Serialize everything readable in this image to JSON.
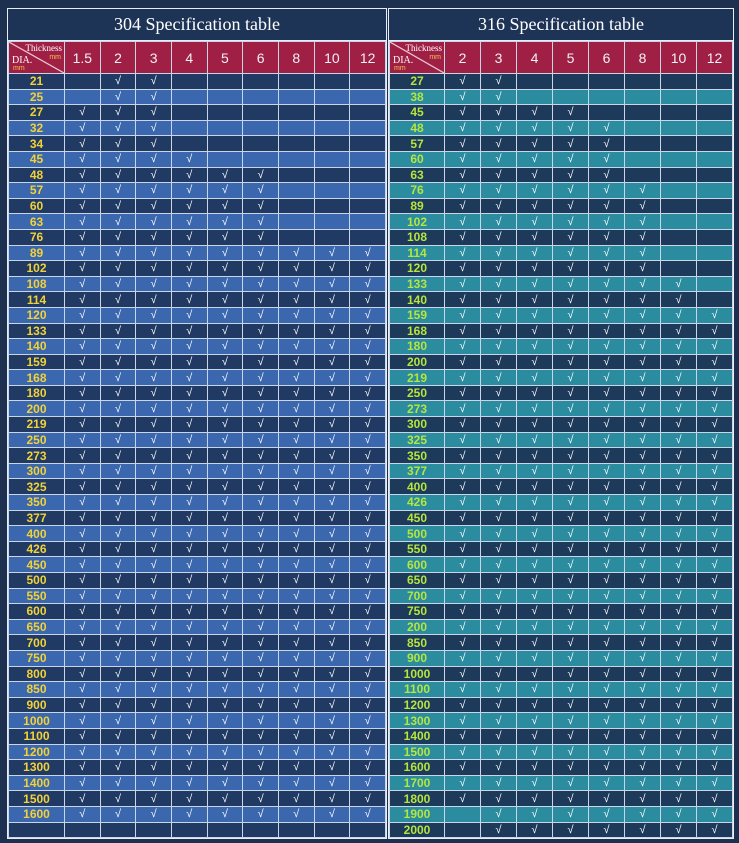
{
  "tables": [
    {
      "id": "304",
      "title": "304 Specification table",
      "corner": {
        "thickness": "Thickness",
        "dia": "DIA.",
        "unit_thickness": "mm",
        "unit_dia": "mm"
      },
      "thickness": [
        "1.5",
        "2",
        "3",
        "4",
        "5",
        "6",
        "8",
        "10",
        "12"
      ],
      "check": "√",
      "rows": [
        {
          "dia": "21",
          "from": 1,
          "to": 2
        },
        {
          "dia": "25",
          "from": 1,
          "to": 2
        },
        {
          "dia": "27",
          "from": 0,
          "to": 2
        },
        {
          "dia": "32",
          "from": 0,
          "to": 2
        },
        {
          "dia": "34",
          "from": 0,
          "to": 2
        },
        {
          "dia": "45",
          "from": 0,
          "to": 3
        },
        {
          "dia": "48",
          "from": 0,
          "to": 5
        },
        {
          "dia": "57",
          "from": 0,
          "to": 5
        },
        {
          "dia": "60",
          "from": 0,
          "to": 5
        },
        {
          "dia": "63",
          "from": 0,
          "to": 5
        },
        {
          "dia": "76",
          "from": 0,
          "to": 5
        },
        {
          "dia": "89",
          "from": 0,
          "to": 8
        },
        {
          "dia": "102",
          "from": 0,
          "to": 8
        },
        {
          "dia": "108",
          "from": 0,
          "to": 8
        },
        {
          "dia": "114",
          "from": 0,
          "to": 8
        },
        {
          "dia": "120",
          "from": 0,
          "to": 8
        },
        {
          "dia": "133",
          "from": 0,
          "to": 8
        },
        {
          "dia": "140",
          "from": 0,
          "to": 8
        },
        {
          "dia": "159",
          "from": 0,
          "to": 8
        },
        {
          "dia": "168",
          "from": 0,
          "to": 8
        },
        {
          "dia": "180",
          "from": 0,
          "to": 8
        },
        {
          "dia": "200",
          "from": 0,
          "to": 8
        },
        {
          "dia": "219",
          "from": 0,
          "to": 8
        },
        {
          "dia": "250",
          "from": 0,
          "to": 8
        },
        {
          "dia": "273",
          "from": 0,
          "to": 8
        },
        {
          "dia": "300",
          "from": 0,
          "to": 8
        },
        {
          "dia": "325",
          "from": 0,
          "to": 8
        },
        {
          "dia": "350",
          "from": 0,
          "to": 8
        },
        {
          "dia": "377",
          "from": 0,
          "to": 8
        },
        {
          "dia": "400",
          "from": 0,
          "to": 8
        },
        {
          "dia": "426",
          "from": 0,
          "to": 8
        },
        {
          "dia": "450",
          "from": 0,
          "to": 8
        },
        {
          "dia": "500",
          "from": 0,
          "to": 8
        },
        {
          "dia": "550",
          "from": 0,
          "to": 8
        },
        {
          "dia": "600",
          "from": 0,
          "to": 8
        },
        {
          "dia": "650",
          "from": 0,
          "to": 8
        },
        {
          "dia": "700",
          "from": 0,
          "to": 8
        },
        {
          "dia": "750",
          "from": 0,
          "to": 8
        },
        {
          "dia": "800",
          "from": 0,
          "to": 8
        },
        {
          "dia": "850",
          "from": 0,
          "to": 8
        },
        {
          "dia": "900",
          "from": 0,
          "to": 8
        },
        {
          "dia": "1000",
          "from": 0,
          "to": 8
        },
        {
          "dia": "1100",
          "from": 0,
          "to": 8
        },
        {
          "dia": "1200",
          "from": 0,
          "to": 8
        },
        {
          "dia": "1300",
          "from": 0,
          "to": 8
        },
        {
          "dia": "1400",
          "from": 0,
          "to": 8
        },
        {
          "dia": "1500",
          "from": 0,
          "to": 8
        },
        {
          "dia": "1600",
          "from": 0,
          "to": 8
        },
        {
          "dia": "",
          "from": -1,
          "to": -1
        }
      ]
    },
    {
      "id": "316",
      "title": "316 Specification table",
      "corner": {
        "thickness": "Thickness",
        "dia": "DIA.",
        "unit_thickness": "mm",
        "unit_dia": "mm"
      },
      "thickness": [
        "2",
        "3",
        "4",
        "5",
        "6",
        "8",
        "10",
        "12"
      ],
      "check": "√",
      "rows": [
        {
          "dia": "27",
          "from": 0,
          "to": 1
        },
        {
          "dia": "38",
          "from": 0,
          "to": 1
        },
        {
          "dia": "45",
          "from": 0,
          "to": 3
        },
        {
          "dia": "48",
          "from": 0,
          "to": 4
        },
        {
          "dia": "57",
          "from": 0,
          "to": 4
        },
        {
          "dia": "60",
          "from": 0,
          "to": 4
        },
        {
          "dia": "63",
          "from": 0,
          "to": 4
        },
        {
          "dia": "76",
          "from": 0,
          "to": 5
        },
        {
          "dia": "89",
          "from": 0,
          "to": 5
        },
        {
          "dia": "102",
          "from": 0,
          "to": 5
        },
        {
          "dia": "108",
          "from": 0,
          "to": 5
        },
        {
          "dia": "114",
          "from": 0,
          "to": 5
        },
        {
          "dia": "120",
          "from": 0,
          "to": 5
        },
        {
          "dia": "133",
          "from": 0,
          "to": 6
        },
        {
          "dia": "140",
          "from": 0,
          "to": 6
        },
        {
          "dia": "159",
          "from": 0,
          "to": 7
        },
        {
          "dia": "168",
          "from": 0,
          "to": 7
        },
        {
          "dia": "180",
          "from": 0,
          "to": 7
        },
        {
          "dia": "200",
          "from": 0,
          "to": 7
        },
        {
          "dia": "219",
          "from": 0,
          "to": 7
        },
        {
          "dia": "250",
          "from": 0,
          "to": 7
        },
        {
          "dia": "273",
          "from": 0,
          "to": 7
        },
        {
          "dia": "300",
          "from": 0,
          "to": 7
        },
        {
          "dia": "325",
          "from": 0,
          "to": 7
        },
        {
          "dia": "350",
          "from": 0,
          "to": 7
        },
        {
          "dia": "377",
          "from": 0,
          "to": 7
        },
        {
          "dia": "400",
          "from": 0,
          "to": 7
        },
        {
          "dia": "426",
          "from": 0,
          "to": 7
        },
        {
          "dia": "450",
          "from": 0,
          "to": 7
        },
        {
          "dia": "500",
          "from": 0,
          "to": 7
        },
        {
          "dia": "550",
          "from": 0,
          "to": 7
        },
        {
          "dia": "600",
          "from": 0,
          "to": 7
        },
        {
          "dia": "650",
          "from": 0,
          "to": 7
        },
        {
          "dia": "700",
          "from": 0,
          "to": 7
        },
        {
          "dia": "750",
          "from": 0,
          "to": 7
        },
        {
          "dia": "200",
          "from": 0,
          "to": 7
        },
        {
          "dia": "850",
          "from": 0,
          "to": 7
        },
        {
          "dia": "900",
          "from": 0,
          "to": 7
        },
        {
          "dia": "1000",
          "from": 0,
          "to": 7
        },
        {
          "dia": "1100",
          "from": 0,
          "to": 7
        },
        {
          "dia": "1200",
          "from": 0,
          "to": 7
        },
        {
          "dia": "1300",
          "from": 0,
          "to": 7
        },
        {
          "dia": "1400",
          "from": 0,
          "to": 7
        },
        {
          "dia": "1500",
          "from": 0,
          "to": 7
        },
        {
          "dia": "1600",
          "from": 0,
          "to": 7
        },
        {
          "dia": "1700",
          "from": 0,
          "to": 7
        },
        {
          "dia": "1800",
          "from": 0,
          "to": 7
        },
        {
          "dia": "1900",
          "from": 1,
          "to": 7
        },
        {
          "dia": "2000",
          "from": 1,
          "to": 7
        }
      ]
    }
  ]
}
